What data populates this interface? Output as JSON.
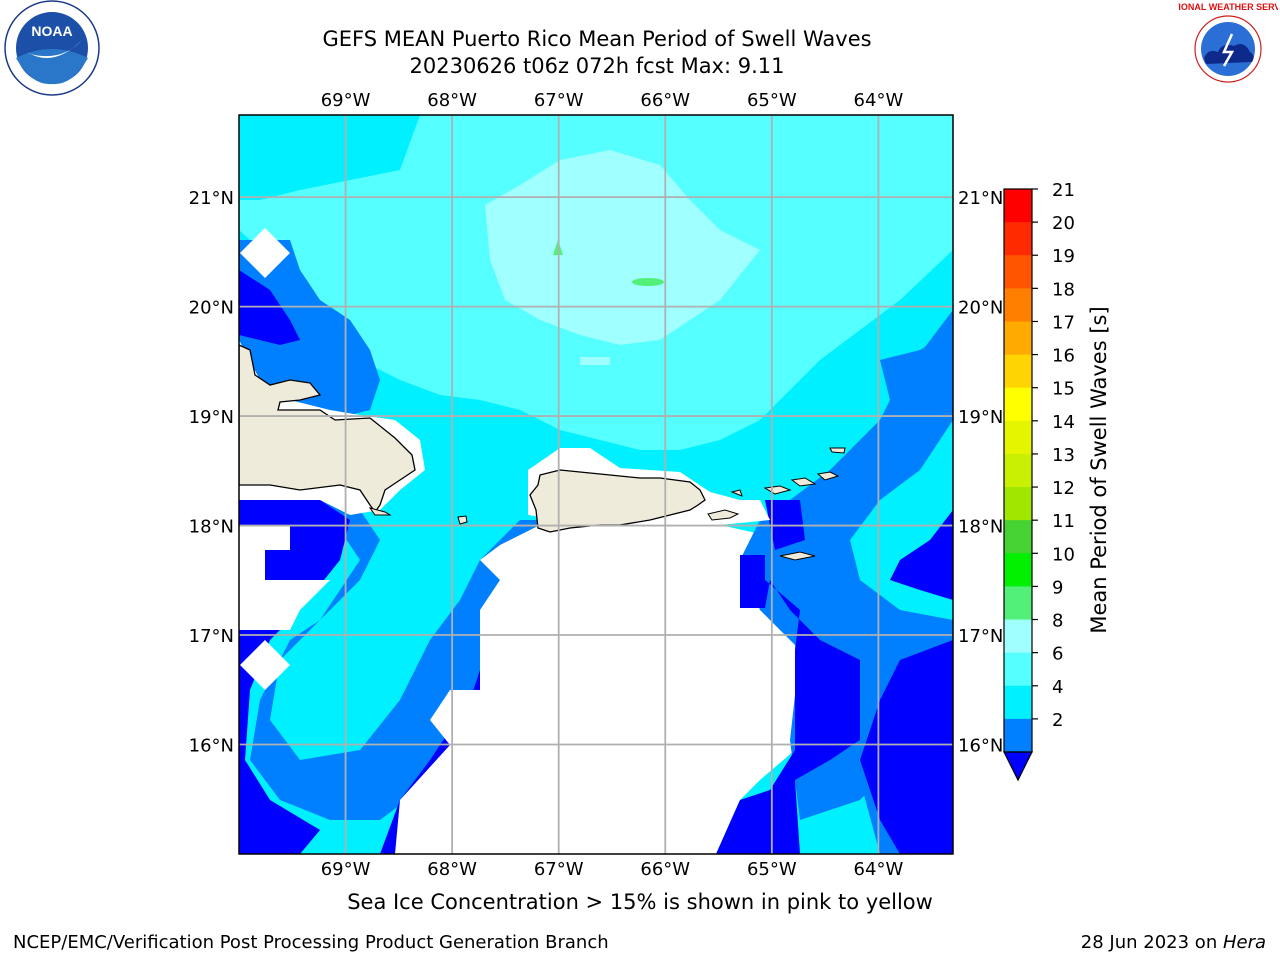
{
  "header": {
    "title_line1": "GEFS MEAN Puerto Rico Mean Period of Swell Waves",
    "title_line2": "20230626 t06z 072h fcst   Max: 9.11"
  },
  "logos": {
    "left": {
      "name": "noaa-logo",
      "text": "NOAA"
    },
    "right": {
      "name": "nws-logo",
      "text": "NATIONAL WEATHER SERVICE"
    }
  },
  "map": {
    "lon_labels": [
      "69°W",
      "68°W",
      "67°W",
      "66°W",
      "65°W",
      "64°W"
    ],
    "lat_labels": [
      "21°N",
      "20°N",
      "19°N",
      "18°N",
      "17°N",
      "16°N"
    ],
    "lon_range": [
      -70.0,
      -63.3
    ],
    "lat_range": [
      15.0,
      21.75
    ],
    "colors": {
      "land": "#efebda",
      "missing": "#ffffff",
      "grid": "#b0b0b0"
    }
  },
  "colorbar": {
    "label": "Mean Period of Swell Waves [s]",
    "ticks": [
      "21",
      "20",
      "19",
      "18",
      "17",
      "16",
      "15",
      "14",
      "13",
      "12",
      "11",
      "10",
      "9",
      "8",
      "6",
      "4",
      "2"
    ],
    "bins": [
      {
        "color": "#ff0000"
      },
      {
        "color": "#ff2a00"
      },
      {
        "color": "#ff5500"
      },
      {
        "color": "#ff7f00"
      },
      {
        "color": "#ffaa00"
      },
      {
        "color": "#ffd400"
      },
      {
        "color": "#ffff00"
      },
      {
        "color": "#e5f500"
      },
      {
        "color": "#c8f000"
      },
      {
        "color": "#a0e600"
      },
      {
        "color": "#46d232"
      },
      {
        "color": "#00f000"
      },
      {
        "color": "#52f078"
      },
      {
        "color": "#a0ffff"
      },
      {
        "color": "#55ffff"
      },
      {
        "color": "#00f0ff"
      },
      {
        "color": "#0080ff"
      }
    ],
    "extend_color": "#0000ff"
  },
  "caption": "Sea Ice Concentration > 15% is shown in pink to yellow",
  "footer": {
    "left": "NCEP/EMC/Verification Post Processing Product Generation Branch",
    "right_prefix": "28 Jun 2023 on ",
    "right_host": "Hera"
  }
}
